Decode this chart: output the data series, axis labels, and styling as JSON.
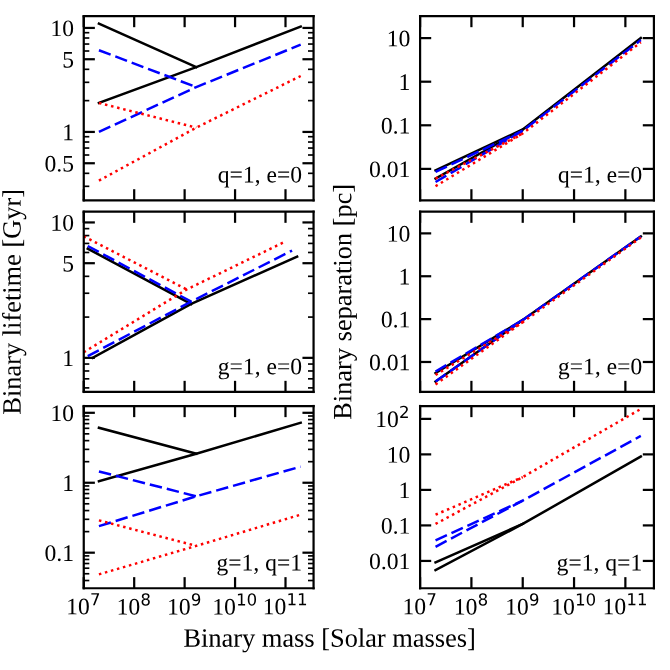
{
  "chart_data": [
    {
      "type": "line",
      "log": "xy",
      "annotations": [
        "q=1, e=0"
      ],
      "xlim": [
        10000000.0,
        360000000000.0
      ],
      "ylim": [
        0.22,
        13
      ],
      "xticks": [
        {
          "value": 10000000.0,
          "label": null
        },
        {
          "value": 100000000.0,
          "label": null
        },
        {
          "value": 1000000000.0,
          "label": null
        },
        {
          "value": 10000000000.0,
          "label": null
        },
        {
          "value": 100000000000.0,
          "label": null
        }
      ],
      "yticks": [
        0.5,
        1,
        5,
        10
      ],
      "tick_labels": "y",
      "series": [
        {
          "color": "#000000",
          "line_style": "solid",
          "x": [
            20000000.0,
            1700000000.0
          ],
          "values": [
            11,
            4.2
          ]
        },
        {
          "color": "#000000",
          "line_style": "solid",
          "x": [
            20000000.0,
            1700000000.0,
            200000000000.0
          ],
          "values": [
            1.9,
            4.2,
            10.3
          ]
        },
        {
          "color": "#0000ff",
          "line_style": "dashed",
          "x": [
            20000000.0,
            1700000000.0
          ],
          "values": [
            6.1,
            2.7
          ]
        },
        {
          "color": "#0000ff",
          "line_style": "dashed",
          "x": [
            20000000.0,
            1700000000.0,
            200000000000.0
          ],
          "values": [
            1.0,
            2.7,
            6.9
          ]
        },
        {
          "color": "#ff0000",
          "line_style": "dotted",
          "x": [
            20000000.0,
            1700000000.0
          ],
          "values": [
            1.9,
            1.1
          ]
        },
        {
          "color": "#ff0000",
          "line_style": "dotted",
          "x": [
            20000000.0,
            1700000000.0,
            200000000000.0
          ],
          "values": [
            0.34,
            1.1,
            3.45
          ]
        }
      ]
    },
    {
      "type": "line",
      "log": "xy",
      "annotations": [
        "q=1, e=0"
      ],
      "xlim": [
        10000000.0,
        360000000000.0
      ],
      "ylim": [
        0.0019,
        32
      ],
      "xticks": [
        {
          "value": 10000000.0,
          "label": null
        },
        {
          "value": 100000000.0,
          "label": null
        },
        {
          "value": 1000000000.0,
          "label": null
        },
        {
          "value": 10000000000.0,
          "label": null
        },
        {
          "value": 100000000000.0,
          "label": null
        }
      ],
      "yticks": [
        0.01,
        0.1,
        1,
        10
      ],
      "tick_labels": "y",
      "series": [
        {
          "color": "#000000",
          "line_style": "solid",
          "x": [
            20000000.0,
            1000000000.0
          ],
          "values": [
            0.0093,
            0.08
          ]
        },
        {
          "color": "#000000",
          "line_style": "solid",
          "x": [
            20000000.0,
            1000000000.0,
            200000000000.0
          ],
          "values": [
            0.006,
            0.08,
            10
          ]
        },
        {
          "color": "#0000ff",
          "line_style": "dashed",
          "x": [
            20000000.0,
            1000000000.0
          ],
          "values": [
            0.0085,
            0.075
          ]
        },
        {
          "color": "#0000ff",
          "line_style": "dashed",
          "x": [
            20000000.0,
            1000000000.0,
            200000000000.0
          ],
          "values": [
            0.005,
            0.075,
            9
          ]
        },
        {
          "color": "#ff0000",
          "line_style": "dotted",
          "x": [
            20000000.0,
            1000000000.0
          ],
          "values": [
            0.006,
            0.065
          ]
        },
        {
          "color": "#ff0000",
          "line_style": "dotted",
          "x": [
            20000000.0,
            1000000000.0,
            200000000000.0
          ],
          "values": [
            0.004,
            0.065,
            8
          ]
        }
      ]
    },
    {
      "type": "line",
      "log": "xy",
      "ylabel": "Binary lifetime [Gyr]",
      "annotations": [
        "g=1, e=0"
      ],
      "xlim": [
        10000000.0,
        360000000000.0
      ],
      "ylim": [
        0.56,
        12
      ],
      "xticks": [
        {
          "value": 10000000.0,
          "label": null
        },
        {
          "value": 100000000.0,
          "label": null
        },
        {
          "value": 1000000000.0,
          "label": null
        },
        {
          "value": 10000000000.0,
          "label": null
        },
        {
          "value": 100000000000.0,
          "label": null
        }
      ],
      "yticks": [
        1,
        5,
        10
      ],
      "tick_labels": "y",
      "series": [
        {
          "color": "#000000",
          "line_style": "solid",
          "x": [
            12000000.0,
            1350000000.0
          ],
          "values": [
            6.4,
            2.5
          ]
        },
        {
          "color": "#000000",
          "line_style": "solid",
          "x": [
            15000000.0,
            1350000000.0,
            170000000000.0
          ],
          "values": [
            1.0,
            2.5,
            5.6
          ]
        },
        {
          "color": "#0000ff",
          "line_style": "dashed",
          "x": [
            12000000.0,
            1350000000.0
          ],
          "values": [
            6.7,
            2.6
          ]
        },
        {
          "color": "#0000ff",
          "line_style": "dashed",
          "x": [
            12000000.0,
            1350000000.0,
            135000000000.0
          ],
          "values": [
            1.03,
            2.6,
            6.2
          ]
        },
        {
          "color": "#ff0000",
          "line_style": "dotted",
          "x": [
            10000000.0,
            1100000000.0
          ],
          "values": [
            7.9,
            3.2
          ]
        },
        {
          "color": "#ff0000",
          "line_style": "dotted",
          "x": [
            10000000.0,
            1100000000.0,
            90000000000.0
          ],
          "values": [
            1.1,
            3.2,
            7.1
          ]
        }
      ]
    },
    {
      "type": "line",
      "log": "xy",
      "ylabel": "Binary separation [pc]",
      "annotations": [
        "g=1, e=0"
      ],
      "xlim": [
        10000000.0,
        360000000000.0
      ],
      "ylim": [
        0.002,
        32
      ],
      "xticks": [
        {
          "value": 10000000.0,
          "label": null
        },
        {
          "value": 100000000.0,
          "label": null
        },
        {
          "value": 1000000000.0,
          "label": null
        },
        {
          "value": 10000000000.0,
          "label": null
        },
        {
          "value": 100000000000.0,
          "label": null
        }
      ],
      "yticks": [
        0.01,
        0.1,
        1,
        10
      ],
      "tick_labels": "y",
      "series": [
        {
          "color": "#000000",
          "line_style": "solid",
          "x": [
            20000000.0,
            1000000000.0
          ],
          "values": [
            0.0055,
            0.095
          ]
        },
        {
          "color": "#000000",
          "line_style": "solid",
          "x": [
            20000000.0,
            1000000000.0,
            200000000000.0
          ],
          "values": [
            0.0035,
            0.095,
            8.5
          ]
        },
        {
          "color": "#0000ff",
          "line_style": "dashed",
          "x": [
            20000000.0,
            1000000000.0
          ],
          "values": [
            0.006,
            0.095
          ]
        },
        {
          "color": "#0000ff",
          "line_style": "dashed",
          "x": [
            20000000.0,
            1000000000.0,
            200000000000.0
          ],
          "values": [
            0.0035,
            0.095,
            8.5
          ]
        },
        {
          "color": "#ff0000",
          "line_style": "dotted",
          "x": [
            20000000.0,
            1000000000.0
          ],
          "values": [
            0.005,
            0.085
          ]
        },
        {
          "color": "#ff0000",
          "line_style": "dotted",
          "x": [
            20000000.0,
            1000000000.0,
            200000000000.0
          ],
          "values": [
            0.003,
            0.085,
            8
          ]
        }
      ]
    },
    {
      "type": "line",
      "log": "xy",
      "xlabel": "Binary mass [Solar masses]",
      "annotations": [
        "g=1, q=1"
      ],
      "xlim": [
        10000000.0,
        360000000000.0
      ],
      "ylim": [
        0.031,
        12.5
      ],
      "xticks": [
        {
          "value": 10000000.0,
          "label": "10$^{7}$"
        },
        {
          "value": 100000000.0,
          "label": "10$^{8}$"
        },
        {
          "value": 1000000000.0,
          "label": "10$^{9}$"
        },
        {
          "value": 10000000000.0,
          "label": "10$^{10}$"
        },
        {
          "value": 100000000000.0,
          "label": "10$^{11}$"
        }
      ],
      "yticks": [
        0.1,
        1,
        10
      ],
      "series": [
        {
          "color": "#000000",
          "line_style": "solid",
          "x": [
            20000000.0,
            1700000000.0
          ],
          "values": [
            6.1,
            2.6
          ]
        },
        {
          "color": "#000000",
          "line_style": "solid",
          "x": [
            20000000.0,
            1700000000.0,
            200000000000.0
          ],
          "values": [
            1.05,
            2.6,
            7.2
          ]
        },
        {
          "color": "#0000ff",
          "line_style": "dashed",
          "x": [
            20000000.0,
            1700000000.0
          ],
          "values": [
            1.45,
            0.64
          ]
        },
        {
          "color": "#0000ff",
          "line_style": "dashed",
          "x": [
            20000000.0,
            1700000000.0,
            200000000000.0
          ],
          "values": [
            0.24,
            0.64,
            1.7
          ]
        },
        {
          "color": "#ff0000",
          "line_style": "dotted",
          "x": [
            20000000.0,
            1700000000.0
          ],
          "values": [
            0.29,
            0.125
          ]
        },
        {
          "color": "#ff0000",
          "line_style": "dotted",
          "x": [
            20000000.0,
            1700000000.0,
            200000000000.0
          ],
          "values": [
            0.049,
            0.125,
            0.35
          ]
        }
      ]
    },
    {
      "type": "line",
      "log": "xy",
      "annotations": [
        "g=1, q=1"
      ],
      "xlim": [
        10000000.0,
        360000000000.0
      ],
      "ylim": [
        0.0017,
        230
      ],
      "xticks": [
        {
          "value": 10000000.0,
          "label": "10$^{7}$"
        },
        {
          "value": 100000000.0,
          "label": "10$^{8}$"
        },
        {
          "value": 1000000000.0,
          "label": "10$^{9}$"
        },
        {
          "value": 10000000000.0,
          "label": "10$^{10}$"
        },
        {
          "value": 100000000000.0,
          "label": "10$^{11}$"
        }
      ],
      "yticks": [
        0.01,
        0.1,
        1,
        10,
        {
          "value": 100,
          "label": "10$^{2}$"
        }
      ],
      "series": [
        {
          "color": "#000000",
          "line_style": "solid",
          "x": [
            20000000.0,
            1000000000.0
          ],
          "values": [
            0.0091,
            0.11
          ]
        },
        {
          "color": "#000000",
          "line_style": "solid",
          "x": [
            20000000.0,
            1000000000.0,
            200000000000.0
          ],
          "values": [
            0.0055,
            0.11,
            8.7
          ]
        },
        {
          "color": "#0000ff",
          "line_style": "dashed",
          "x": [
            20000000.0,
            1000000000.0
          ],
          "values": [
            0.038,
            0.5
          ]
        },
        {
          "color": "#0000ff",
          "line_style": "dashed",
          "x": [
            20000000.0,
            1000000000.0,
            200000000000.0
          ],
          "values": [
            0.025,
            0.5,
            33
          ]
        },
        {
          "color": "#ff0000",
          "line_style": "dotted",
          "x": [
            20000000.0,
            1000000000.0
          ],
          "values": [
            0.2,
            2.3
          ]
        },
        {
          "color": "#ff0000",
          "line_style": "dotted",
          "x": [
            20000000.0,
            1000000000.0,
            200000000000.0
          ],
          "values": [
            0.11,
            2.3,
            190
          ]
        }
      ]
    }
  ]
}
